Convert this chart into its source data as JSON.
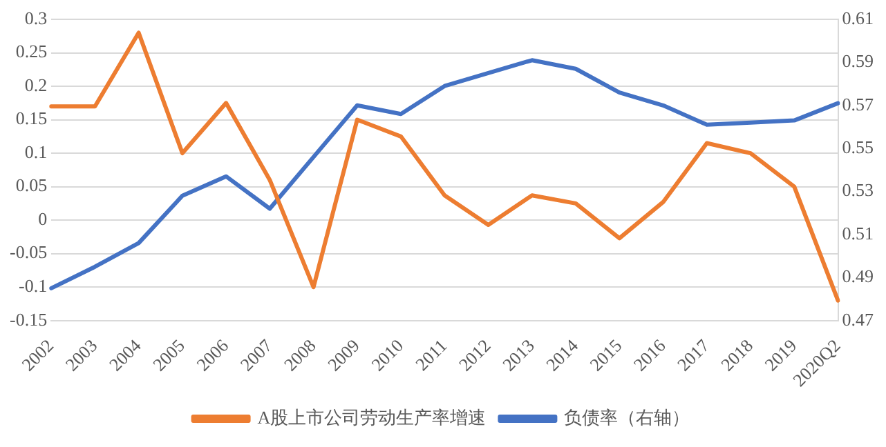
{
  "chart_data": {
    "type": "line",
    "categories": [
      "2002",
      "2003",
      "2004",
      "2005",
      "2006",
      "2007",
      "2008",
      "2009",
      "2010",
      "2011",
      "2012",
      "2013",
      "2014",
      "2015",
      "2016",
      "2017",
      "2018",
      "2019",
      "2020Q2"
    ],
    "series": [
      {
        "name": "A股上市公司劳动生产率增速",
        "color": "#ed7d31",
        "values": [
          0.17,
          0.17,
          0.28,
          0.1,
          0.175,
          0.06,
          -0.1,
          0.15,
          0.125,
          0.037,
          -0.007,
          0.037,
          0.025,
          -0.027,
          0.027,
          0.115,
          0.1,
          0.05,
          -0.12
        ]
      },
      {
        "name": "负债率（右轴）",
        "color": "#4472c4",
        "axis": "y2",
        "values": [
          0.485,
          0.495,
          0.506,
          0.528,
          0.537,
          0.522,
          0.546,
          0.57,
          0.566,
          0.579,
          0.585,
          0.591,
          0.587,
          0.576,
          0.57,
          0.561,
          0.562,
          0.563,
          0.571
        ]
      }
    ],
    "ylim": [
      -0.15,
      0.3
    ],
    "yticks": [
      -0.15,
      -0.1,
      -0.05,
      0,
      0.05,
      0.1,
      0.15,
      0.2,
      0.25,
      0.3
    ],
    "y2lim": [
      0.47,
      0.61
    ],
    "y2ticks": [
      0.47,
      0.49,
      0.51,
      0.53,
      0.55,
      0.57,
      0.59,
      0.61
    ],
    "grid": "y",
    "legend": "bottom",
    "marker": "none",
    "line_style": "solid"
  }
}
